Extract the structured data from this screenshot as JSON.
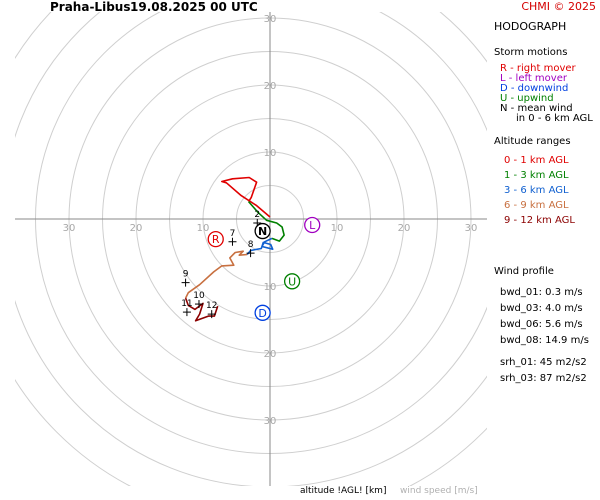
{
  "header": {
    "station": "Praha-Libus",
    "datetime": "19.08.2025 00 UTC",
    "copyright": "CHMI © 2025"
  },
  "legend": {
    "title": "HODOGRAPH",
    "storm_motions_title": "Storm motions",
    "motions": [
      {
        "text": "R - right mover",
        "color": "#e00000"
      },
      {
        "text": "L - left mover",
        "color": "#a000c0"
      },
      {
        "text": "D - downwind",
        "color": "#0040e0"
      },
      {
        "text": "U - upwind",
        "color": "#008000"
      },
      {
        "text": "N - mean wind",
        "color": "#000000"
      },
      {
        "text": "in 0 - 6 km AGL",
        "color": "#000000"
      }
    ],
    "altitude_title": "Altitude ranges",
    "ranges": [
      {
        "text": "0 - 1 km AGL",
        "color": "#e00000"
      },
      {
        "text": "1 - 3 km AGL",
        "color": "#008000"
      },
      {
        "text": "3 - 6 km AGL",
        "color": "#1060d0"
      },
      {
        "text": "6 - 9 km AGL",
        "color": "#c87040"
      },
      {
        "text": "9 - 12 km AGL",
        "color": "#8b0000"
      }
    ]
  },
  "wind_profile": {
    "title": "Wind profile",
    "rows": [
      "bwd_01: 0.3 m/s",
      "bwd_03: 4.0 m/s",
      "bwd_06: 5.6 m/s",
      "bwd_08: 14.9 m/s",
      "srh_01: 45 m2/s2",
      "srh_03: 87 m2/s2"
    ]
  },
  "footer": {
    "altitude_label": "altitude !AGL! [km]",
    "speed_label": "wind speed [m/s]"
  },
  "chart_data": {
    "type": "scatter",
    "title": "HODOGRAPH",
    "ring_speeds": [
      10,
      20,
      30
    ],
    "axis_tick_labels": {
      "x_positive": [
        "10",
        "20",
        "30"
      ],
      "x_negative": [
        "10",
        "20",
        "30"
      ],
      "y_positive": [
        "10",
        "20",
        "30"
      ],
      "y_negative": [
        "10",
        "20",
        "30"
      ]
    },
    "range_ms": 30,
    "segments": [
      {
        "range": "0 - 1 km AGL",
        "color": "#e00000",
        "points": [
          [
            0.0,
            0.3
          ],
          [
            -2.0,
            2.0
          ],
          [
            -4.3,
            3.5
          ],
          [
            -6.5,
            5.4
          ],
          [
            -7.2,
            5.6
          ],
          [
            -5.6,
            6.0
          ],
          [
            -3.1,
            6.2
          ],
          [
            -2.0,
            5.5
          ],
          [
            -2.8,
            3.2
          ],
          [
            -3.2,
            2.6
          ]
        ]
      },
      {
        "range": "1 - 3 km AGL",
        "color": "#008000",
        "points": [
          [
            -3.2,
            2.6
          ],
          [
            -1.8,
            1.0
          ],
          [
            -0.5,
            -0.2
          ],
          [
            1.0,
            -0.6
          ],
          [
            1.8,
            -1.2
          ],
          [
            2.1,
            -2.4
          ],
          [
            1.4,
            -3.3
          ],
          [
            0.3,
            -2.9
          ]
        ]
      },
      {
        "range": "3 - 6 km AGL",
        "color": "#1060d0",
        "points": [
          [
            0.3,
            -2.9
          ],
          [
            -0.8,
            -3.4
          ],
          [
            -1.2,
            -4.1
          ],
          [
            0.4,
            -4.5
          ],
          [
            0.1,
            -3.8
          ],
          [
            -1.0,
            -3.5
          ],
          [
            -1.3,
            -4.4
          ],
          [
            -2.9,
            -4.7
          ],
          [
            -3.4,
            -5.3
          ]
        ]
      },
      {
        "range": "6 - 9 km AGL",
        "color": "#c87040",
        "points": [
          [
            -3.4,
            -5.3
          ],
          [
            -4.6,
            -5.4
          ],
          [
            -4.0,
            -4.8
          ],
          [
            -5.2,
            -5.0
          ],
          [
            -6.0,
            -5.8
          ],
          [
            -5.4,
            -6.9
          ],
          [
            -7.2,
            -7.0
          ],
          [
            -8.4,
            -7.9
          ],
          [
            -10.5,
            -9.8
          ],
          [
            -12.2,
            -11.0
          ],
          [
            -12.6,
            -11.8
          ]
        ]
      },
      {
        "range": "9 - 12 km AGL",
        "color": "#8b0000",
        "points": [
          [
            -12.6,
            -11.8
          ],
          [
            -12.2,
            -12.9
          ],
          [
            -11.2,
            -13.5
          ],
          [
            -10.0,
            -12.6
          ],
          [
            -10.5,
            -14.2
          ],
          [
            -11.1,
            -15.2
          ],
          [
            -9.2,
            -14.5
          ],
          [
            -8.3,
            -14.5
          ],
          [
            -7.8,
            -13.0
          ]
        ]
      }
    ],
    "height_labels": [
      {
        "text": "2",
        "u": -1.9,
        "v": 0.3,
        "color": "#000000"
      },
      {
        "text": "7",
        "u": -5.6,
        "v": -2.5,
        "color": "#000000"
      },
      {
        "text": "8",
        "u": -2.9,
        "v": -4.2,
        "color": "#000000"
      },
      {
        "text": "9",
        "u": -12.6,
        "v": -8.6,
        "color": "#000000"
      },
      {
        "text": "10",
        "u": -10.6,
        "v": -11.8,
        "color": "#000000"
      },
      {
        "text": "11",
        "u": -12.4,
        "v": -13.0,
        "color": "#000000"
      },
      {
        "text": "12",
        "u": -8.7,
        "v": -13.3,
        "color": "#000000"
      }
    ],
    "motions": [
      {
        "label": "R",
        "u": -8.1,
        "v": -3.0,
        "color": "#e00000"
      },
      {
        "label": "L",
        "u": 6.3,
        "v": -0.9,
        "color": "#a000c0"
      },
      {
        "label": "D",
        "u": -1.1,
        "v": -14.0,
        "color": "#0040e0"
      },
      {
        "label": "U",
        "u": 3.3,
        "v": -9.3,
        "color": "#008000"
      },
      {
        "label": "N",
        "u": -1.1,
        "v": -1.8,
        "color": "#000000"
      }
    ]
  }
}
